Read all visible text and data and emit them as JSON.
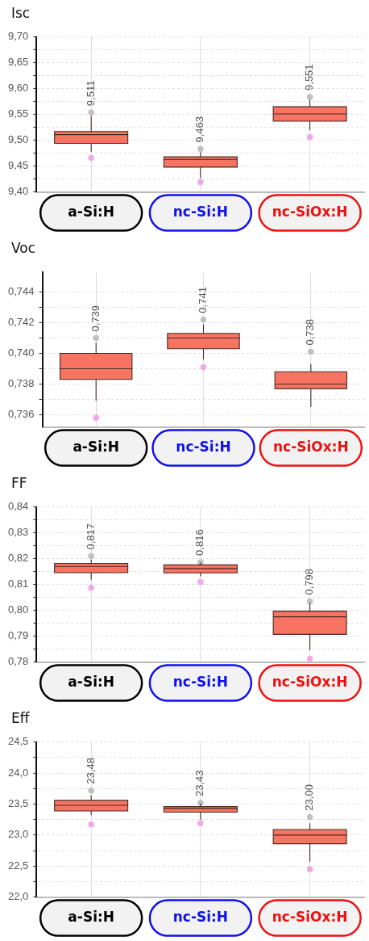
{
  "chart_data": [
    {
      "type": "box",
      "title": "Isc",
      "categories": [
        "a-Si:H",
        "nc-Si:H",
        "nc-SiOx:H"
      ],
      "color": "#f77362",
      "grid": true,
      "boxes": [
        {
          "low": 9.478,
          "q1": 9.494,
          "median": 9.511,
          "q3": 9.517,
          "high": 9.547,
          "outliers": [
            9.554,
            9.466
          ]
        },
        {
          "low": 9.427,
          "q1": 9.448,
          "median": 9.463,
          "q3": 9.468,
          "high": 9.477,
          "outliers": [
            9.483,
            9.419
          ]
        },
        {
          "low": 9.52,
          "q1": 9.537,
          "median": 9.551,
          "q3": 9.565,
          "high": 9.579,
          "outliers": [
            9.584,
            9.506
          ]
        }
      ],
      "value_labels": [
        "9,511",
        "9,463",
        "9,551"
      ],
      "ylim": [
        9.4,
        9.7
      ],
      "yticks": [
        {
          "value": 9.4,
          "label": "9,40"
        },
        {
          "value": 9.425,
          "label": null
        },
        {
          "value": 9.45,
          "label": "9,45"
        },
        {
          "value": 9.475,
          "label": null
        },
        {
          "value": 9.5,
          "label": "9,50"
        },
        {
          "value": 9.525,
          "label": null
        },
        {
          "value": 9.55,
          "label": "9,55"
        },
        {
          "value": 9.575,
          "label": null
        },
        {
          "value": 9.6,
          "label": "9,60"
        },
        {
          "value": 9.625,
          "label": null
        },
        {
          "value": 9.65,
          "label": "9,65"
        },
        {
          "value": 9.675,
          "label": null
        },
        {
          "value": 9.7,
          "label": "9,70"
        }
      ]
    },
    {
      "type": "box",
      "title": "Voc",
      "categories": [
        "a-Si:H",
        "nc-Si:H",
        "nc-SiOx:H"
      ],
      "color": "#f77362",
      "grid": true,
      "boxes": [
        {
          "low": 0.7369,
          "q1": 0.7383,
          "median": 0.739,
          "q3": 0.74,
          "high": 0.7407,
          "outliers": [
            0.741,
            0.7358
          ]
        },
        {
          "low": 0.7396,
          "q1": 0.7403,
          "median": 0.741,
          "q3": 0.7413,
          "high": 0.7419,
          "outliers": [
            0.7422,
            0.7391
          ]
        },
        {
          "low": 0.7365,
          "q1": 0.7377,
          "median": 0.738,
          "q3": 0.7388,
          "high": 0.7393,
          "outliers": [
            0.7401
          ]
        }
      ],
      "value_labels": [
        "0,739",
        "0,741",
        "0,738"
      ],
      "ylim": [
        0.7352,
        0.7453
      ],
      "yticks": [
        {
          "value": 0.736,
          "label": "0,736"
        },
        {
          "value": 0.737,
          "label": null
        },
        {
          "value": 0.738,
          "label": "0,738"
        },
        {
          "value": 0.739,
          "label": null
        },
        {
          "value": 0.74,
          "label": "0,740"
        },
        {
          "value": 0.741,
          "label": null
        },
        {
          "value": 0.742,
          "label": "0,742"
        },
        {
          "value": 0.743,
          "label": null
        },
        {
          "value": 0.744,
          "label": "0,744"
        }
      ]
    },
    {
      "type": "box",
      "title": "FF",
      "categories": [
        "a-Si:H",
        "nc-Si:H",
        "nc-SiOx:H"
      ],
      "color": "#f77362",
      "grid": true,
      "boxes": [
        {
          "low": 0.8119,
          "q1": 0.8146,
          "median": 0.817,
          "q3": 0.8182,
          "high": 0.8197,
          "outliers": [
            0.821,
            0.8087
          ]
        },
        {
          "low": 0.8132,
          "q1": 0.8145,
          "median": 0.8162,
          "q3": 0.8176,
          "high": 0.8185,
          "outliers": [
            0.8187,
            0.811
          ]
        },
        {
          "low": 0.7846,
          "q1": 0.7907,
          "median": 0.7975,
          "q3": 0.7997,
          "high": 0.8029,
          "outliers": [
            0.8035,
            0.7813
          ]
        }
      ],
      "value_labels": [
        "0,817",
        "0,816",
        "0,798"
      ],
      "ylim": [
        0.78,
        0.84
      ],
      "yticks": [
        {
          "value": 0.78,
          "label": "0,78"
        },
        {
          "value": 0.785,
          "label": null
        },
        {
          "value": 0.79,
          "label": "0,79"
        },
        {
          "value": 0.795,
          "label": null
        },
        {
          "value": 0.8,
          "label": "0,80"
        },
        {
          "value": 0.805,
          "label": null
        },
        {
          "value": 0.81,
          "label": "0,81"
        },
        {
          "value": 0.815,
          "label": null
        },
        {
          "value": 0.82,
          "label": "0,82"
        },
        {
          "value": 0.825,
          "label": null
        },
        {
          "value": 0.83,
          "label": "0,83"
        },
        {
          "value": 0.835,
          "label": null
        },
        {
          "value": 0.84,
          "label": "0,84"
        }
      ]
    },
    {
      "type": "box",
      "title": "Eff",
      "categories": [
        "a-Si:H",
        "nc-Si:H",
        "nc-SiOx:H"
      ],
      "color": "#f77362",
      "grid": true,
      "boxes": [
        {
          "low": 23.32,
          "q1": 23.39,
          "median": 23.48,
          "q3": 23.56,
          "high": 23.64,
          "outliers": [
            23.72,
            23.17
          ]
        },
        {
          "low": 23.25,
          "q1": 23.37,
          "median": 23.43,
          "q3": 23.46,
          "high": 23.51,
          "outliers": [
            23.52,
            23.19
          ]
        },
        {
          "low": 22.57,
          "q1": 22.86,
          "median": 23.0,
          "q3": 23.09,
          "high": 23.19,
          "outliers": [
            23.29,
            22.45
          ]
        }
      ],
      "value_labels": [
        "23,48",
        "23,43",
        "23,00"
      ],
      "ylim": [
        22.0,
        24.5
      ],
      "yticks": [
        {
          "value": 22.0,
          "label": "22,0"
        },
        {
          "value": 22.25,
          "label": null
        },
        {
          "value": 22.5,
          "label": "22,5"
        },
        {
          "value": 22.75,
          "label": null
        },
        {
          "value": 23.0,
          "label": "23,0"
        },
        {
          "value": 23.25,
          "label": null
        },
        {
          "value": 23.5,
          "label": "23,5"
        },
        {
          "value": 23.75,
          "label": null
        },
        {
          "value": 24.0,
          "label": "24,0"
        },
        {
          "value": 24.25,
          "label": null
        },
        {
          "value": 24.5,
          "label": "24,5"
        }
      ]
    }
  ]
}
